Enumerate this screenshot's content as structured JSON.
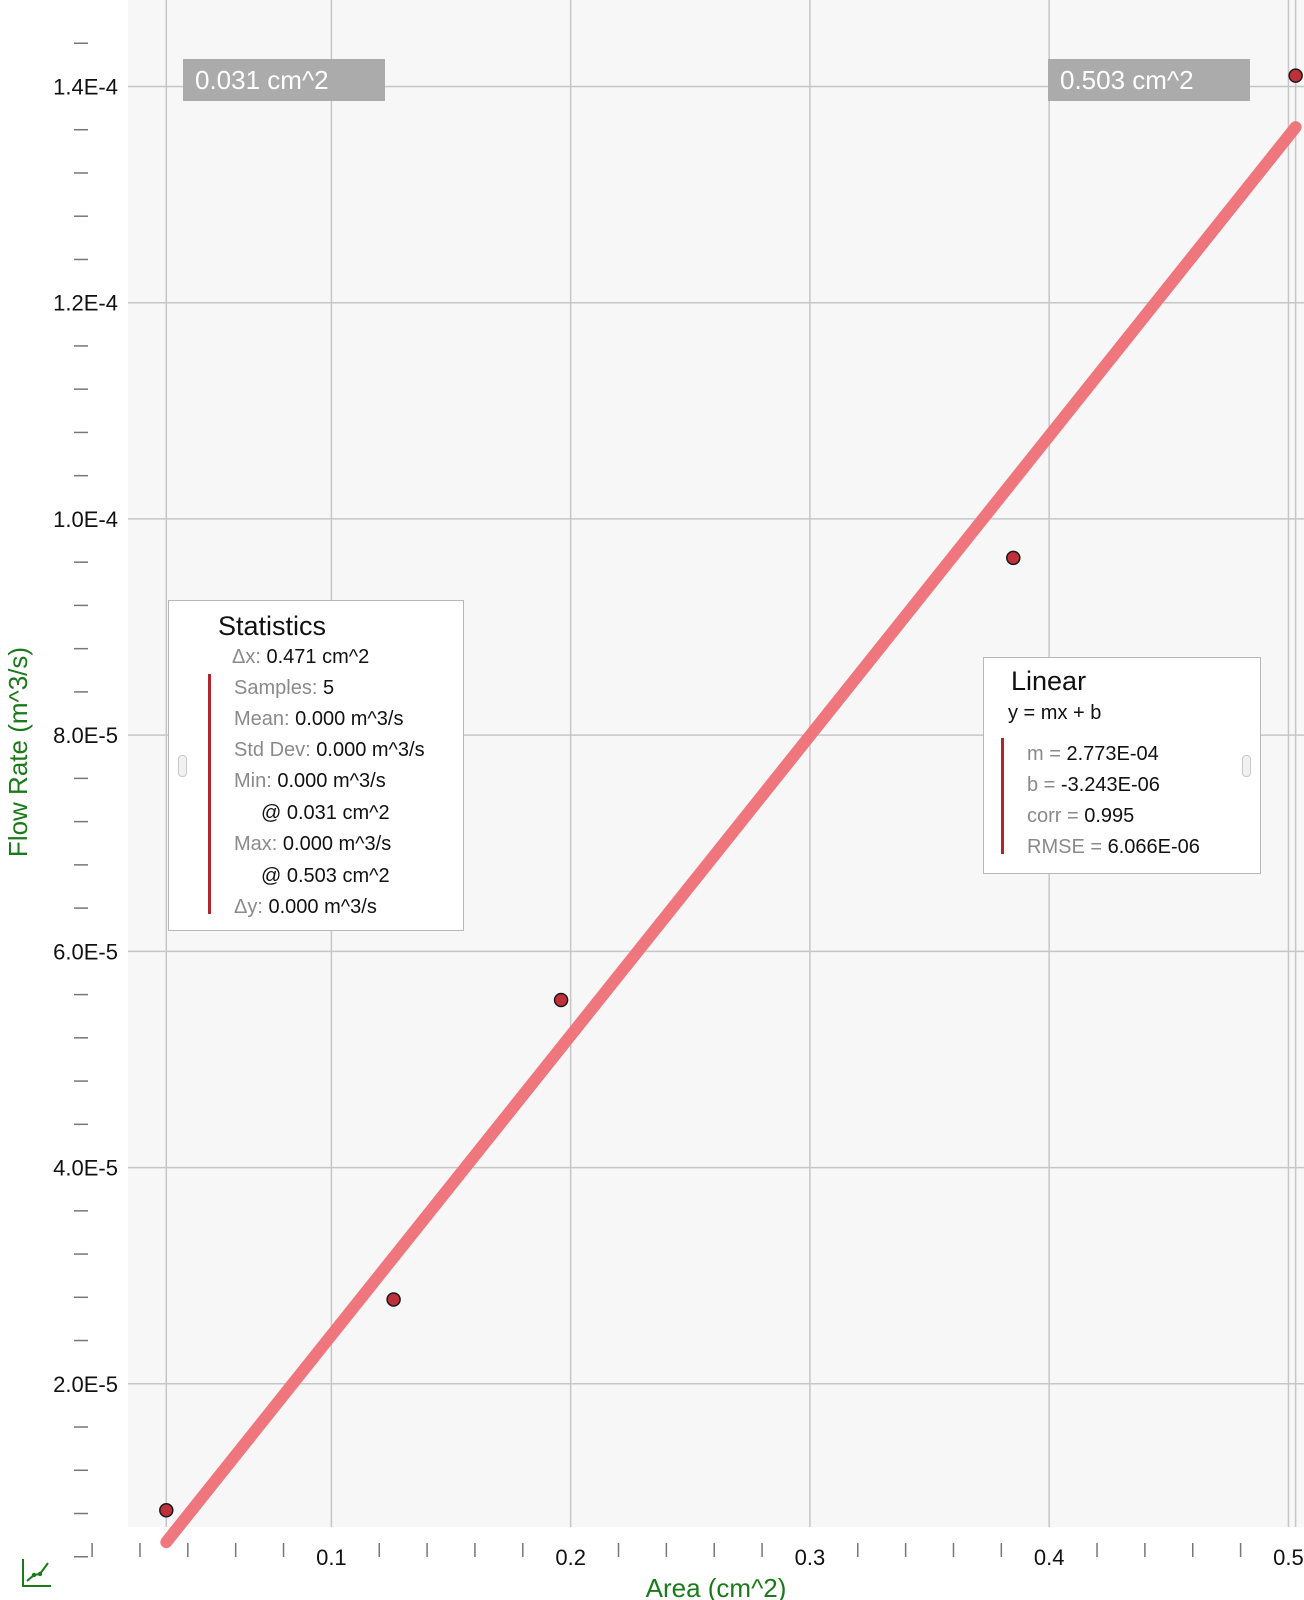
{
  "chart_data": {
    "type": "scatter",
    "xlabel": "Area (cm^2)",
    "ylabel": "Flow Rate (m^3/s)",
    "xlim": [
      -0.0385,
      0.5065
    ],
    "ylim": [
      0,
      0.000148
    ],
    "x_ticks": [
      0.1,
      0.2,
      0.3,
      0.4,
      0.5
    ],
    "x_tick_labels": [
      "0.1",
      "0.2",
      "0.3",
      "0.4",
      "0.5"
    ],
    "y_ticks": [
      2e-05,
      4e-05,
      6e-05,
      8e-05,
      0.0001,
      0.00012,
      0.00014
    ],
    "y_tick_labels": [
      "2.0E-5",
      "4.0E-5",
      "6.0E-5",
      "8.0E-5",
      "1.0E-4",
      "1.2E-4",
      "1.4E-4"
    ],
    "grid": true,
    "points": [
      {
        "x": 0.031,
        "y": 8.3e-06
      },
      {
        "x": 0.126,
        "y": 2.78e-05
      },
      {
        "x": 0.196,
        "y": 5.55e-05
      },
      {
        "x": 0.385,
        "y": 9.64e-05
      },
      {
        "x": 0.503,
        "y": 0.000141
      }
    ],
    "fit": {
      "type": "linear",
      "m": 0.0002773,
      "b": -3.243e-06,
      "x_range": [
        0.031,
        0.503
      ]
    },
    "colors": {
      "points": "#c0303a",
      "fit_line": "#f07078",
      "axis_title": "#1a7a1a"
    }
  },
  "selection": {
    "start_label": "0.031 cm^2",
    "end_label": "0.503 cm^2"
  },
  "statistics": {
    "title": "Statistics",
    "dx_key": "Δx:",
    "dx_val": "0.471 cm^2",
    "samples_key": "Samples:",
    "samples_val": "5",
    "mean_key": "Mean:",
    "mean_val": "0.000 m^3/s",
    "std_key": "Std Dev:",
    "std_val": "0.000 m^3/s",
    "min_key": "Min:",
    "min_val": "0.000 m^3/s",
    "min_at": "@ 0.031 cm^2",
    "max_key": "Max:",
    "max_val": "0.000 m^3/s",
    "max_at": "@ 0.503 cm^2",
    "dy_key": "Δy:",
    "dy_val": "0.000 m^3/s"
  },
  "linear": {
    "title": "Linear",
    "equation": "y = mx + b",
    "m_key": "m =",
    "m_val": "2.773E-04",
    "b_key": "b =",
    "b_val": "-3.243E-06",
    "corr_key": "corr =",
    "corr_val": "0.995",
    "rmse_key": "RMSE =",
    "rmse_val": "6.066E-06"
  },
  "toolbar": {
    "icon": "graph-icon"
  }
}
